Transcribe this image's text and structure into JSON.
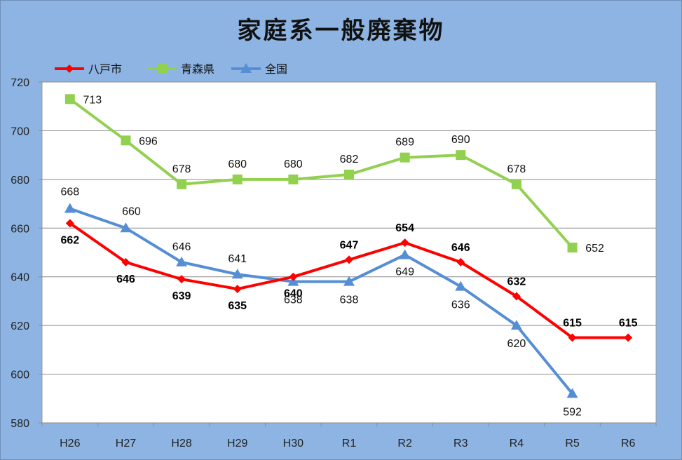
{
  "chart_data": {
    "type": "line",
    "title": "家庭系一般廃棄物",
    "categories": [
      "H26",
      "H27",
      "H28",
      "H29",
      "H30",
      "R1",
      "R2",
      "R3",
      "R4",
      "R5",
      "R6"
    ],
    "ylim": [
      580,
      720
    ],
    "yticks": [
      580,
      600,
      620,
      640,
      660,
      680,
      700,
      720
    ],
    "grid": true,
    "legend_position": "top-left",
    "background": "#8db4e2",
    "plot_background": "#ffffff",
    "series": [
      {
        "name": "八戸市",
        "color": "#ff0000",
        "marker": "diamond",
        "label_weight": "bold",
        "values": [
          662,
          646,
          639,
          635,
          640,
          647,
          654,
          646,
          632,
          615,
          615
        ]
      },
      {
        "name": "青森県",
        "color": "#92d050",
        "marker": "square",
        "label_weight": "normal",
        "values": [
          713,
          696,
          678,
          680,
          680,
          682,
          689,
          690,
          678,
          652,
          null
        ]
      },
      {
        "name": "全国",
        "color": "#558ed5",
        "marker": "triangle",
        "label_weight": "normal",
        "values": [
          668,
          660,
          646,
          641,
          638,
          638,
          649,
          636,
          620,
          592,
          null
        ]
      }
    ]
  }
}
